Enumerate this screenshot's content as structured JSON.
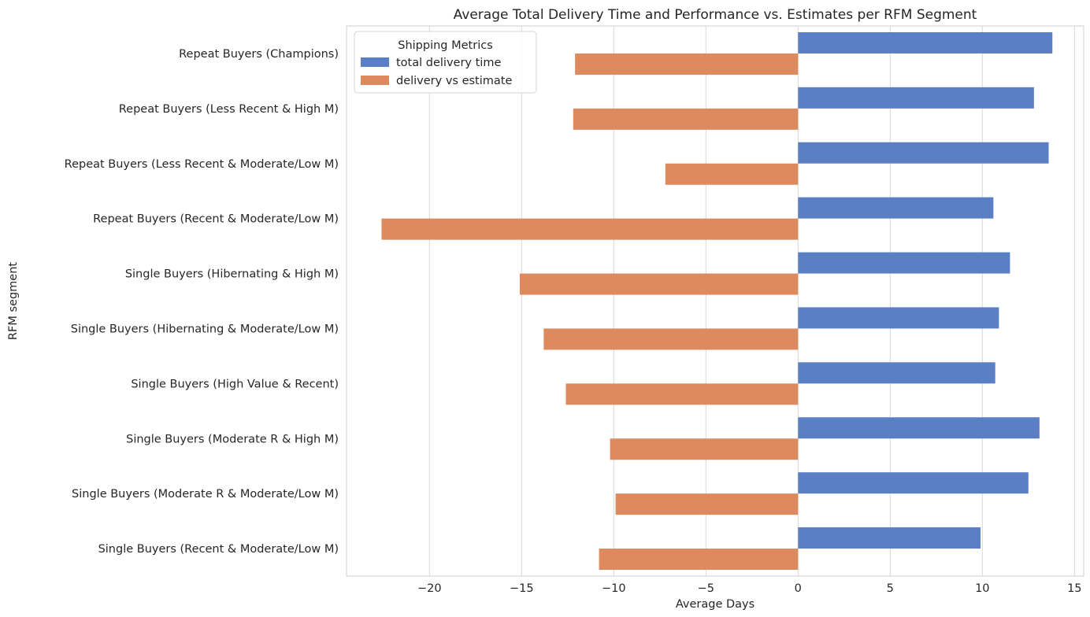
{
  "chart_data": {
    "type": "bar",
    "orientation": "horizontal",
    "title": "Average Total Delivery Time and Performance vs. Estimates per RFM Segment",
    "xlabel": "Average Days",
    "ylabel": "RFM segment",
    "xlim": [
      -24.5,
      15.5
    ],
    "xticks": [
      -20,
      -15,
      -10,
      -5,
      0,
      5,
      10,
      15
    ],
    "xtick_labels": [
      "−20",
      "−15",
      "−10",
      "−5",
      "0",
      "5",
      "10",
      "15"
    ],
    "grid": "vertical",
    "legend": {
      "title": "Shipping Metrics",
      "placement": "top-left"
    },
    "categories": [
      "Repeat Buyers (Champions)",
      "Repeat Buyers (Less Recent & High M)",
      "Repeat Buyers (Less Recent & Moderate/Low M)",
      "Repeat Buyers (Recent & Moderate/Low M)",
      "Single Buyers (Hibernating & High M)",
      "Single Buyers (Hibernating & Moderate/Low M)",
      "Single Buyers (High Value & Recent)",
      "Single Buyers (Moderate R & High M)",
      "Single Buyers (Moderate R & Moderate/Low M)",
      "Single Buyers (Recent & Moderate/Low M)"
    ],
    "series": [
      {
        "name": "total delivery time",
        "color": "#5b7fc4",
        "values": [
          13.8,
          12.8,
          13.6,
          10.6,
          11.5,
          10.9,
          10.7,
          13.1,
          12.5,
          9.9
        ]
      },
      {
        "name": "delivery vs estimate",
        "color": "#dd8a5e",
        "values": [
          -12.1,
          -12.2,
          -7.2,
          -22.6,
          -15.1,
          -13.8,
          -12.6,
          -10.2,
          -9.9,
          -10.8
        ]
      }
    ]
  }
}
